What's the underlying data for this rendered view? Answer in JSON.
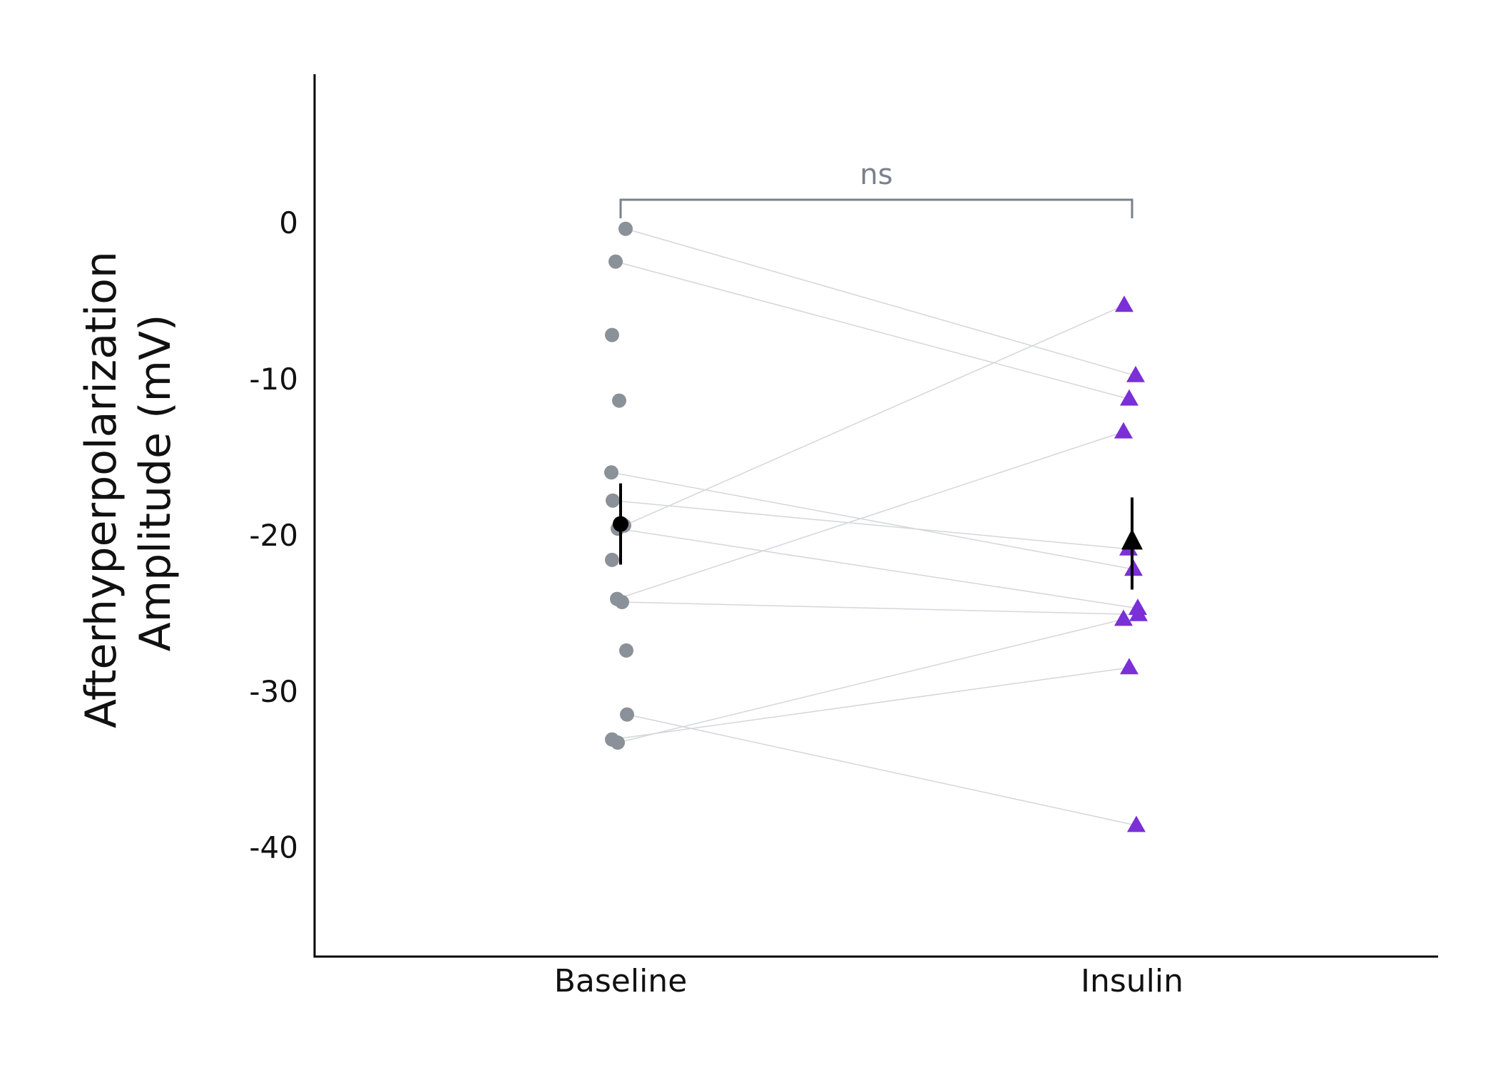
{
  "chart_data": {
    "type": "scatter",
    "title": "",
    "xlabel": "",
    "ylabel_lines": [
      "Afterhyperpolarization",
      "Amplitude (mV)"
    ],
    "categories": [
      "Baseline",
      "Insulin"
    ],
    "ylim": [
      -47,
      9.5
    ],
    "yticks": [
      0,
      -10,
      -20,
      -30,
      -40
    ],
    "ytick_labels": [
      "0",
      "-10",
      "-20",
      "-30",
      "-40"
    ],
    "grid": false,
    "legend": "none",
    "colors": {
      "baseline_points": "#8a9199",
      "insulin_points": "#7b2fd6",
      "summary": "#000000",
      "pair_lines": "#d4d6da",
      "significance": "#7a808c",
      "axis": "#000000"
    },
    "series": [
      {
        "category": "Baseline",
        "marker": "circle",
        "values": [
          -0.4,
          -2.5,
          -7.2,
          -11.4,
          -16.0,
          -17.8,
          -19.4,
          -19.6,
          -21.6,
          -24.1,
          -24.3,
          -27.4,
          -31.5,
          -33.1,
          -33.3
        ]
      },
      {
        "category": "Insulin",
        "marker": "triangle",
        "values": [
          -5.3,
          -9.8,
          -11.3,
          -13.4,
          -20.9,
          -22.2,
          -24.7,
          -25.1,
          -25.4,
          -28.5,
          -38.6
        ]
      }
    ],
    "pairs": [
      [
        -0.4,
        -9.8
      ],
      [
        -2.5,
        -11.3
      ],
      [
        -16.0,
        -22.2
      ],
      [
        -17.8,
        -20.9
      ],
      [
        -19.4,
        -5.3
      ],
      [
        -19.6,
        -24.7
      ],
      [
        -24.1,
        -13.4
      ],
      [
        -24.3,
        -25.1
      ],
      [
        -31.5,
        -38.6
      ],
      [
        -33.1,
        -28.5
      ],
      [
        -33.3,
        -25.4
      ]
    ],
    "summary": [
      {
        "category": "Baseline",
        "mean": -19.3,
        "lower": -21.9,
        "upper": -16.7,
        "marker": "circle"
      },
      {
        "category": "Insulin",
        "mean": -20.4,
        "lower": -23.5,
        "upper": -17.6,
        "marker": "triangle"
      }
    ],
    "significance": {
      "label": "ns",
      "from": "Baseline",
      "to": "Insulin"
    }
  }
}
